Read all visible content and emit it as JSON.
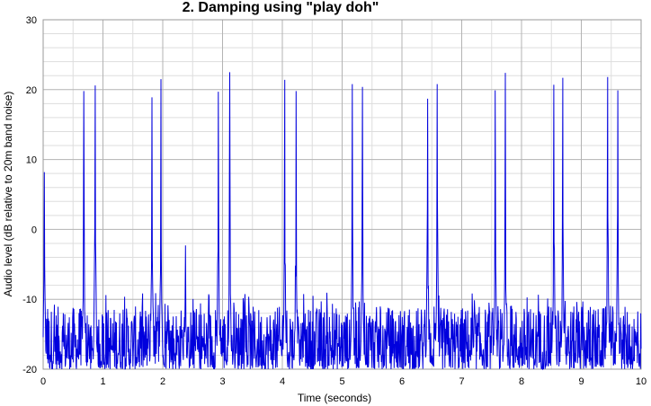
{
  "chart_data": {
    "type": "line",
    "title": "2. Damping using \"play doh\"",
    "xlabel": "Time (seconds)",
    "ylabel": "Audio level (dB relative to 20m band noise)",
    "xlim": [
      0,
      10
    ],
    "ylim": [
      -20,
      30
    ],
    "x_ticks": [
      "0",
      "1",
      "2",
      "3",
      "4",
      "5",
      "6",
      "7",
      "8",
      "9",
      "10"
    ],
    "y_ticks": [
      "30",
      "20",
      "10",
      "0",
      "-10",
      "-20"
    ],
    "grid": true,
    "line_color": "#0000dd",
    "background_color": "#ffffff",
    "noise_floor": [
      -20,
      -10
    ],
    "series": [
      {
        "peaks": [
          {
            "x": 0.02,
            "y": 8.2
          },
          {
            "x": 0.68,
            "y": 19.8
          },
          {
            "x": 0.87,
            "y": 20.6
          },
          {
            "x": 1.82,
            "y": 18.9
          },
          {
            "x": 1.97,
            "y": 21.5
          },
          {
            "x": 2.38,
            "y": -2.3
          },
          {
            "x": 2.93,
            "y": 19.7
          },
          {
            "x": 3.12,
            "y": 22.5
          },
          {
            "x": 4.04,
            "y": 21.4
          },
          {
            "x": 4.23,
            "y": 19.8
          },
          {
            "x": 5.17,
            "y": 20.8
          },
          {
            "x": 5.34,
            "y": 20.4
          },
          {
            "x": 6.43,
            "y": 18.7
          },
          {
            "x": 6.59,
            "y": 20.8
          },
          {
            "x": 7.56,
            "y": 19.9
          },
          {
            "x": 7.73,
            "y": 22.4
          },
          {
            "x": 8.54,
            "y": 20.7
          },
          {
            "x": 8.69,
            "y": 21.7
          },
          {
            "x": 9.44,
            "y": 21.8
          },
          {
            "x": 9.61,
            "y": 19.9
          }
        ]
      }
    ]
  }
}
